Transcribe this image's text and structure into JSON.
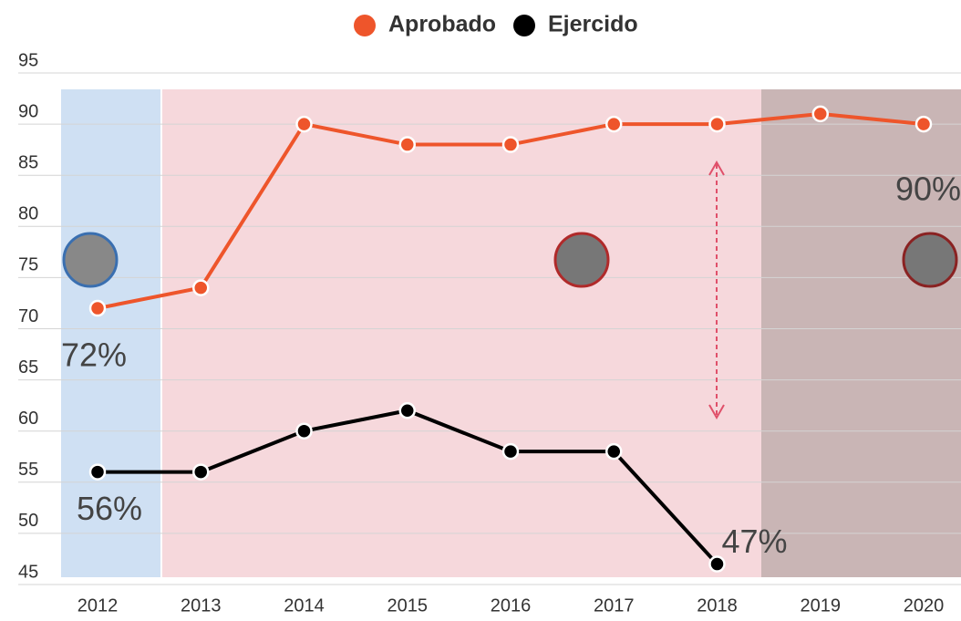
{
  "chart_data": {
    "type": "line",
    "categories": [
      "2012",
      "2013",
      "2014",
      "2015",
      "2016",
      "2017",
      "2018",
      "2019",
      "2020"
    ],
    "series": [
      {
        "name": "Aprobado",
        "color": "#ee552b",
        "values": [
          72,
          74,
          90,
          88,
          88,
          90,
          90,
          91,
          90
        ],
        "value_labels": [
          "72%",
          null,
          null,
          null,
          null,
          null,
          null,
          null,
          "90%"
        ]
      },
      {
        "name": "Ejercido",
        "color": "#000000",
        "values": [
          56,
          56,
          60,
          62,
          58,
          58,
          47,
          null,
          null
        ],
        "value_labels": [
          "56%",
          null,
          null,
          null,
          null,
          null,
          "47%",
          null,
          null
        ]
      }
    ],
    "ylim": [
      45,
      95
    ],
    "yticks": [
      45,
      50,
      55,
      60,
      65,
      70,
      75,
      80,
      85,
      90,
      95
    ],
    "grid": true,
    "legend": "top"
  }
}
